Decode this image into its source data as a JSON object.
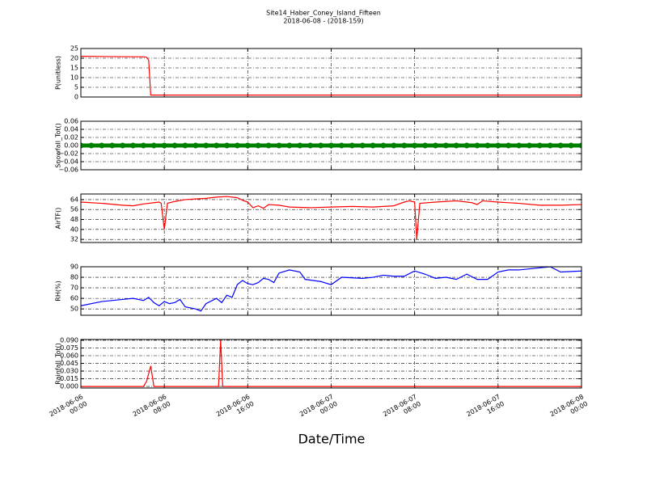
{
  "title": "Site14_Haber_Coney_Island_Fifteen",
  "subtitle": "2018-06-08 - (2018-159)",
  "xlabel": "Date/Time",
  "xlim": [
    "2018-06-06 00:00",
    "2018-06-08 00:00"
  ],
  "xticks": [
    {
      "value": "2018-06-06 00:00",
      "label": [
        "2018-06-06",
        "00:00"
      ]
    },
    {
      "value": "2018-06-06 08:00",
      "label": [
        "2018-06-06",
        "08:00"
      ]
    },
    {
      "value": "2018-06-06 16:00",
      "label": [
        "2018-06-06",
        "16:00"
      ]
    },
    {
      "value": "2018-06-07 00:00",
      "label": [
        "2018-06-07",
        "00:00"
      ]
    },
    {
      "value": "2018-06-07 08:00",
      "label": [
        "2018-06-07",
        "08:00"
      ]
    },
    {
      "value": "2018-06-07 16:00",
      "label": [
        "2018-06-07",
        "16:00"
      ]
    },
    {
      "value": "2018-06-08 00:00",
      "label": [
        "2018-06-08",
        "00:00"
      ]
    }
  ],
  "grid": true,
  "chart_data": [
    {
      "type": "line",
      "ylabel": "P(unitless)",
      "ylim": [
        0,
        25
      ],
      "yticks": [
        0,
        5,
        10,
        15,
        20,
        25
      ],
      "series": [
        {
          "color": "#ff0000",
          "x": [
            "2018-06-06 00:00",
            "2018-06-06 03:00",
            "2018-06-06 06:00",
            "2018-06-06 06:18",
            "2018-06-06 06:30",
            "2018-06-06 06:42",
            "2018-06-08 00:00"
          ],
          "values": [
            21,
            20.8,
            20.7,
            20.5,
            19,
            1,
            1
          ]
        }
      ]
    },
    {
      "type": "scatter",
      "ylabel": "Snowfall_Tot()",
      "ylim": [
        -0.06,
        0.06
      ],
      "yticks": [
        {
          "value": -0.06,
          "label": "−0.06"
        },
        {
          "value": -0.04,
          "label": "−0.04"
        },
        {
          "value": -0.02,
          "label": "−0.02"
        },
        {
          "value": 0,
          "label": "0.00"
        },
        {
          "value": 0.02,
          "label": "0.02"
        },
        {
          "value": 0.04,
          "label": "0.04"
        },
        {
          "value": 0.06,
          "label": "0.06"
        }
      ],
      "series": [
        {
          "color": "#008000",
          "x": [
            "2018-06-06 00:00",
            "2018-06-06 01:00",
            "2018-06-06 02:00",
            "2018-06-06 03:00",
            "2018-06-06 04:00",
            "2018-06-06 05:00",
            "2018-06-06 06:00",
            "2018-06-06 07:00",
            "2018-06-06 08:00",
            "2018-06-06 09:00",
            "2018-06-06 10:00",
            "2018-06-06 11:00",
            "2018-06-06 12:00",
            "2018-06-06 13:00",
            "2018-06-06 14:00",
            "2018-06-06 15:00",
            "2018-06-06 16:00",
            "2018-06-06 17:00",
            "2018-06-06 18:00",
            "2018-06-06 19:00",
            "2018-06-06 20:00",
            "2018-06-06 21:00",
            "2018-06-06 22:00",
            "2018-06-06 23:00",
            "2018-06-07 00:00",
            "2018-06-07 01:00",
            "2018-06-07 02:00",
            "2018-06-07 03:00",
            "2018-06-07 04:00",
            "2018-06-07 05:00",
            "2018-06-07 06:00",
            "2018-06-07 07:00",
            "2018-06-07 08:00",
            "2018-06-07 09:00",
            "2018-06-07 10:00",
            "2018-06-07 11:00",
            "2018-06-07 12:00",
            "2018-06-07 13:00",
            "2018-06-07 14:00",
            "2018-06-07 15:00",
            "2018-06-07 16:00",
            "2018-06-07 17:00",
            "2018-06-07 18:00",
            "2018-06-07 19:00",
            "2018-06-07 20:00",
            "2018-06-07 21:00",
            "2018-06-07 22:00",
            "2018-06-07 23:00",
            "2018-06-08 00:00"
          ],
          "values": [
            0,
            0,
            0,
            0,
            0,
            0,
            0,
            0,
            0,
            0,
            0,
            0,
            0,
            0,
            0,
            0,
            0,
            0,
            0,
            0,
            0,
            0,
            0,
            0,
            0,
            0,
            0,
            0,
            0,
            0,
            0,
            0,
            0,
            0,
            0,
            0,
            0,
            0,
            0,
            0,
            0,
            0,
            0,
            0,
            0,
            0,
            0,
            0,
            0
          ]
        }
      ]
    },
    {
      "type": "line",
      "ylabel": "AirTF()",
      "ylim": [
        29.5,
        68.5
      ],
      "yticks": [
        32,
        40,
        48,
        56,
        64
      ],
      "series": [
        {
          "color": "#ff0000",
          "x": [
            "2018-06-06 00:00",
            "2018-06-06 02:00",
            "2018-06-06 04:00",
            "2018-06-06 05:00",
            "2018-06-06 06:00",
            "2018-06-06 07:00",
            "2018-06-06 07:30",
            "2018-06-06 07:42",
            "2018-06-06 08:00",
            "2018-06-06 08:18",
            "2018-06-06 09:00",
            "2018-06-06 10:00",
            "2018-06-06 11:00",
            "2018-06-06 12:00",
            "2018-06-06 13:00",
            "2018-06-06 14:00",
            "2018-06-06 15:00",
            "2018-06-06 15:30",
            "2018-06-06 16:00",
            "2018-06-06 16:30",
            "2018-06-06 17:00",
            "2018-06-06 17:30",
            "2018-06-06 18:00",
            "2018-06-06 19:00",
            "2018-06-06 20:00",
            "2018-06-06 22:00",
            "2018-06-07 00:00",
            "2018-06-07 02:00",
            "2018-06-07 04:00",
            "2018-06-07 06:00",
            "2018-06-07 07:00",
            "2018-06-07 07:30",
            "2018-06-07 08:00",
            "2018-06-07 08:12",
            "2018-06-07 08:30",
            "2018-06-07 10:00",
            "2018-06-07 12:00",
            "2018-06-07 13:30",
            "2018-06-07 14:00",
            "2018-06-07 14:30",
            "2018-06-07 16:00",
            "2018-06-07 18:00",
            "2018-06-07 20:00",
            "2018-06-07 22:00",
            "2018-06-08 00:00"
          ],
          "values": [
            62,
            61,
            59.5,
            59,
            60.5,
            61.5,
            62,
            61,
            40,
            61,
            62.5,
            64,
            64.5,
            65,
            66,
            66.5,
            65.5,
            63.5,
            62,
            57.5,
            59,
            57,
            60,
            59.5,
            58,
            57.5,
            58,
            58.5,
            58,
            59,
            62,
            63,
            62,
            32,
            61,
            62,
            63,
            61.5,
            60,
            63,
            62,
            61,
            59.5,
            59.5,
            60
          ]
        }
      ]
    },
    {
      "type": "line",
      "ylabel": "RH(%)",
      "ylim": [
        44,
        90
      ],
      "yticks": [
        50,
        60,
        70,
        80,
        90
      ],
      "series": [
        {
          "color": "#0000ff",
          "x": [
            "2018-06-06 00:00",
            "2018-06-06 02:00",
            "2018-06-06 04:00",
            "2018-06-06 05:00",
            "2018-06-06 05:30",
            "2018-06-06 06:00",
            "2018-06-06 06:30",
            "2018-06-06 07:00",
            "2018-06-06 07:30",
            "2018-06-06 08:00",
            "2018-06-06 08:30",
            "2018-06-06 09:00",
            "2018-06-06 09:30",
            "2018-06-06 10:00",
            "2018-06-06 11:00",
            "2018-06-06 11:30",
            "2018-06-06 12:00",
            "2018-06-06 13:00",
            "2018-06-06 13:30",
            "2018-06-06 14:00",
            "2018-06-06 14:30",
            "2018-06-06 15:00",
            "2018-06-06 15:30",
            "2018-06-06 16:00",
            "2018-06-06 16:30",
            "2018-06-06 17:00",
            "2018-06-06 17:30",
            "2018-06-06 18:00",
            "2018-06-06 18:30",
            "2018-06-06 19:00",
            "2018-06-06 20:00",
            "2018-06-06 21:00",
            "2018-06-06 21:30",
            "2018-06-06 23:00",
            "2018-06-07 00:00",
            "2018-06-07 01:00",
            "2018-06-07 03:00",
            "2018-06-07 04:00",
            "2018-06-07 05:00",
            "2018-06-07 06:00",
            "2018-06-07 07:00",
            "2018-06-07 08:00",
            "2018-06-07 09:00",
            "2018-06-07 10:00",
            "2018-06-07 11:00",
            "2018-06-07 12:00",
            "2018-06-07 13:00",
            "2018-06-07 14:00",
            "2018-06-07 15:00",
            "2018-06-07 16:00",
            "2018-06-07 17:00",
            "2018-06-07 18:00",
            "2018-06-07 20:00",
            "2018-06-07 21:00",
            "2018-06-07 22:00",
            "2018-06-08 00:00"
          ],
          "values": [
            53,
            57,
            59,
            60,
            59,
            58,
            61,
            56,
            53,
            57,
            55,
            56,
            59,
            52,
            50,
            48,
            55,
            60,
            56,
            63,
            61,
            73,
            77,
            74,
            73,
            75,
            79,
            78,
            75,
            84,
            87,
            85,
            78,
            76,
            73,
            80,
            79,
            80,
            82,
            81,
            81,
            86,
            83,
            79,
            80,
            78,
            83,
            78,
            78,
            85,
            87,
            87,
            89,
            90,
            85,
            86
          ]
        }
      ]
    },
    {
      "type": "line",
      "ylabel": "Rainfall_Tot()",
      "ylim": [
        -0.003,
        0.0915
      ],
      "yticks": [
        {
          "value": 0,
          "label": "0.000"
        },
        {
          "value": 0.015,
          "label": "0.015"
        },
        {
          "value": 0.03,
          "label": "0.030"
        },
        {
          "value": 0.045,
          "label": "0.045"
        },
        {
          "value": 0.06,
          "label": "0.060"
        },
        {
          "value": 0.075,
          "label": "0.075"
        },
        {
          "value": 0.09,
          "label": "0.090"
        }
      ],
      "series": [
        {
          "color": "#ff0000",
          "x": [
            "2018-06-06 00:00",
            "2018-06-06 06:00",
            "2018-06-06 06:18",
            "2018-06-06 06:42",
            "2018-06-06 07:00",
            "2018-06-06 13:12",
            "2018-06-06 13:24",
            "2018-06-06 13:36",
            "2018-06-08 00:00"
          ],
          "values": [
            0,
            0,
            0.01,
            0.04,
            0,
            0,
            0.09,
            0,
            0
          ]
        }
      ]
    }
  ]
}
